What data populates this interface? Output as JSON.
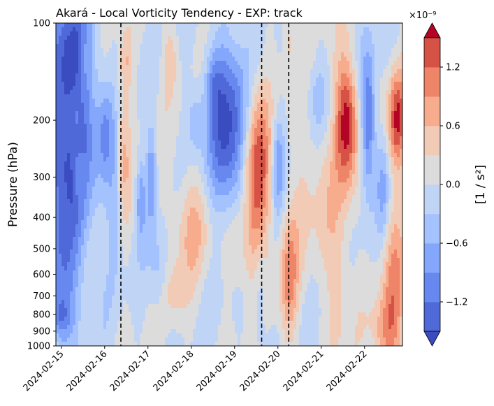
{
  "chart_data": {
    "type": "heatmap",
    "title": "Akará - Local Vorticity Tendency - EXP: track",
    "ylabel": "Pressure (hPa)",
    "y_scale": "log",
    "y_inverted": true,
    "ylim": [
      1000,
      100
    ],
    "y_ticks": [
      100,
      200,
      300,
      400,
      500,
      600,
      700,
      800,
      900,
      1000
    ],
    "x_ticks": [
      "2024-02-15",
      "2024-02-16",
      "2024-02-17",
      "2024-02-18",
      "2024-02-19",
      "2024-02-20",
      "2024-02-21",
      "2024-02-22"
    ],
    "xlim": [
      "2024-02-14T21:00",
      "2024-02-22T21:00"
    ],
    "vertical_lines": [
      "2024-02-16T09:00",
      "2024-02-19T15:00",
      "2024-02-20T06:00"
    ],
    "vertical_line_style": "dashed",
    "colormap": "coolwarm",
    "colorbar": {
      "label": "[1 / s²]",
      "multiplier": "×10⁻⁹",
      "levels": [
        -1.5,
        -1.2,
        -0.9,
        -0.6,
        -0.3,
        0.0,
        0.3,
        0.6,
        0.9,
        1.2,
        1.5
      ],
      "tick_values": [
        -1.2,
        -0.6,
        0.0,
        0.6,
        1.2
      ],
      "tick_labels": [
        "−1.2",
        "−0.6",
        "0.0",
        "0.6",
        "1.2"
      ],
      "extend": "both",
      "colors": [
        "#3b4cc0",
        "#4f69d9",
        "#6788ee",
        "#84a7fc",
        "#a3c2fe",
        "#c0d4f5",
        "#dddcdc",
        "#f2cbb7",
        "#f7ac8e",
        "#ee8468",
        "#d65244",
        "#b40426"
      ],
      "under_color": "#3b4cc0",
      "over_color": "#b40426"
    },
    "features": [
      {
        "t": "2024-02-15T04:00",
        "p": 230,
        "dt": 0.45,
        "dp": 0.75,
        "v": -1.7
      },
      {
        "t": "2024-02-15T00:00",
        "p": 600,
        "dt": 0.25,
        "dp": 0.3,
        "v": -0.8
      },
      {
        "t": "2024-02-15T07:00",
        "p": 120,
        "dt": 0.25,
        "dp": 0.35,
        "v": -0.9
      },
      {
        "t": "2024-02-14T23:00",
        "p": 820,
        "dt": 0.2,
        "dp": 0.15,
        "v": -0.9
      },
      {
        "t": "2024-02-15T08:00",
        "p": 200,
        "dt": 0.12,
        "dp": 0.3,
        "v": 0.5
      },
      {
        "t": "2024-02-15T10:00",
        "p": 300,
        "dt": 0.1,
        "dp": 0.15,
        "v": 0.6
      },
      {
        "t": "2024-02-15T12:00",
        "p": 130,
        "dt": 0.1,
        "dp": 0.2,
        "v": 0.5
      },
      {
        "t": "2024-02-16T00:00",
        "p": 220,
        "dt": 0.12,
        "dp": 0.3,
        "v": -0.6
      },
      {
        "t": "2024-02-16T06:00",
        "p": 350,
        "dt": 0.12,
        "dp": 0.5,
        "v": -0.5
      },
      {
        "t": "2024-02-16T10:00",
        "p": 240,
        "dt": 0.12,
        "dp": 0.45,
        "v": 0.7
      },
      {
        "t": "2024-02-16T12:00",
        "p": 130,
        "dt": 0.1,
        "dp": 0.2,
        "v": 0.5
      },
      {
        "t": "2024-02-16T20:00",
        "p": 350,
        "dt": 0.08,
        "dp": 0.25,
        "v": -0.8
      },
      {
        "t": "2024-02-17T02:00",
        "p": 300,
        "dt": 0.08,
        "dp": 0.3,
        "v": -0.9
      },
      {
        "t": "2024-02-17T06:00",
        "p": 600,
        "dt": 0.15,
        "dp": 0.3,
        "v": -0.5
      },
      {
        "t": "2024-02-17T12:00",
        "p": 130,
        "dt": 0.12,
        "dp": 0.2,
        "v": 0.5
      },
      {
        "t": "2024-02-17T14:00",
        "p": 700,
        "dt": 0.2,
        "dp": 0.2,
        "v": 0.4
      },
      {
        "t": "2024-02-18T00:00",
        "p": 420,
        "dt": 0.35,
        "dp": 0.35,
        "v": 0.6
      },
      {
        "t": "2024-02-18T02:00",
        "p": 200,
        "dt": 0.12,
        "dp": 0.2,
        "v": -0.5
      },
      {
        "t": "2024-02-18T12:00",
        "p": 150,
        "dt": 0.15,
        "dp": 0.2,
        "v": -0.5
      },
      {
        "t": "2024-02-18T21:00",
        "p": 220,
        "dt": 0.35,
        "dp": 0.55,
        "v": -1.6
      },
      {
        "t": "2024-02-19T03:00",
        "p": 480,
        "dt": 0.25,
        "dp": 0.3,
        "v": 0.5
      },
      {
        "t": "2024-02-19T12:00",
        "p": 290,
        "dt": 0.22,
        "dp": 0.55,
        "v": 1.6
      },
      {
        "t": "2024-02-19T14:00",
        "p": 700,
        "dt": 0.1,
        "dp": 0.4,
        "v": -0.5
      },
      {
        "t": "2024-02-20T00:00",
        "p": 270,
        "dt": 0.1,
        "dp": 0.3,
        "v": -0.9
      },
      {
        "t": "2024-02-20T06:00",
        "p": 600,
        "dt": 0.15,
        "dp": 0.4,
        "v": 0.9
      },
      {
        "t": "2024-02-20T06:00",
        "p": 110,
        "dt": 0.1,
        "dp": 0.2,
        "v": 0.5
      },
      {
        "t": "2024-02-20T21:00",
        "p": 300,
        "dt": 0.4,
        "dp": 0.6,
        "v": 0.4
      },
      {
        "t": "2024-02-20T22:00",
        "p": 170,
        "dt": 0.2,
        "dp": 0.25,
        "v": -0.5
      },
      {
        "t": "2024-02-21T14:00",
        "p": 200,
        "dt": 0.18,
        "dp": 0.4,
        "v": 1.7
      },
      {
        "t": "2024-02-21T10:00",
        "p": 650,
        "dt": 0.2,
        "dp": 0.5,
        "v": 0.5
      },
      {
        "t": "2024-02-22T02:00",
        "p": 200,
        "dt": 0.12,
        "dp": 0.45,
        "v": -1.4
      },
      {
        "t": "2024-02-22T18:00",
        "p": 200,
        "dt": 0.15,
        "dp": 0.3,
        "v": 1.5
      },
      {
        "t": "2024-02-22T16:00",
        "p": 700,
        "dt": 0.2,
        "dp": 0.55,
        "v": 0.9
      },
      {
        "t": "2024-02-22T10:00",
        "p": 330,
        "dt": 0.1,
        "dp": 0.3,
        "v": -0.6
      },
      {
        "t": "2024-02-22T10:00",
        "p": 900,
        "dt": 0.2,
        "dp": 0.2,
        "v": 0.6
      }
    ]
  }
}
